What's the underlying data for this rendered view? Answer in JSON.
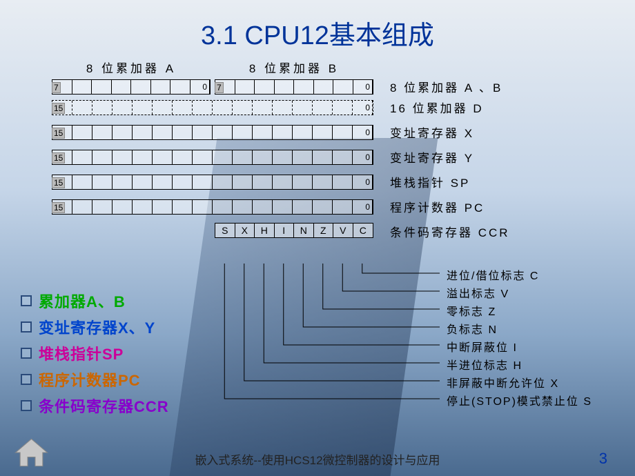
{
  "title": "3.1 CPU12基本组成",
  "headers": {
    "a": "8 位累加器 A",
    "b": "8 位累加器 B"
  },
  "regAB": {
    "a_high": "7",
    "a_low": "0",
    "b_high": "7",
    "b_low": "0",
    "desc": "8 位累加器 A 、B"
  },
  "regD": {
    "high": "15",
    "low": "0",
    "desc": "16 位累加器 D"
  },
  "regX": {
    "high": "15",
    "low": "0",
    "desc": "变址寄存器 X"
  },
  "regY": {
    "high": "15",
    "low": "0",
    "desc": "变址寄存器 Y"
  },
  "regSP": {
    "high": "15",
    "low": "0",
    "desc": "堆栈指针 SP"
  },
  "regPC": {
    "high": "15",
    "low": "0",
    "desc": "程序计数器 PC"
  },
  "ccr": {
    "bits": [
      "S",
      "X",
      "H",
      "I",
      "N",
      "Z",
      "V",
      "C"
    ],
    "desc": "条件码寄存器 CCR",
    "flags": [
      {
        "label": "进位/借位标志 C",
        "col": 7
      },
      {
        "label": "溢出标志 V",
        "col": 6
      },
      {
        "label": "零标志 Z",
        "col": 5
      },
      {
        "label": "负标志 N",
        "col": 4
      },
      {
        "label": "中断屏蔽位 I",
        "col": 3
      },
      {
        "label": "半进位标志 H",
        "col": 2
      },
      {
        "label": "非屏蔽中断允许位 X",
        "col": 1
      },
      {
        "label": "停止(STOP)模式禁止位 S",
        "col": 0
      }
    ]
  },
  "bullets": [
    {
      "text": "累加器A、B",
      "class": "c0"
    },
    {
      "text": "变址寄存器X、Y",
      "class": "c1"
    },
    {
      "text": "堆栈指针SP",
      "class": "c2"
    },
    {
      "text": "程序计数器PC",
      "class": "c3"
    },
    {
      "text": "条件码寄存器CCR",
      "class": "c4"
    }
  ],
  "footer": "嵌入式系统--使用HCS12微控制器的设计与应用",
  "page": "3",
  "layout": {
    "cell_w": 28.5,
    "ccr_box_h": 22,
    "flag_row_h": 26,
    "line_color": "#000",
    "line_w": 1
  }
}
